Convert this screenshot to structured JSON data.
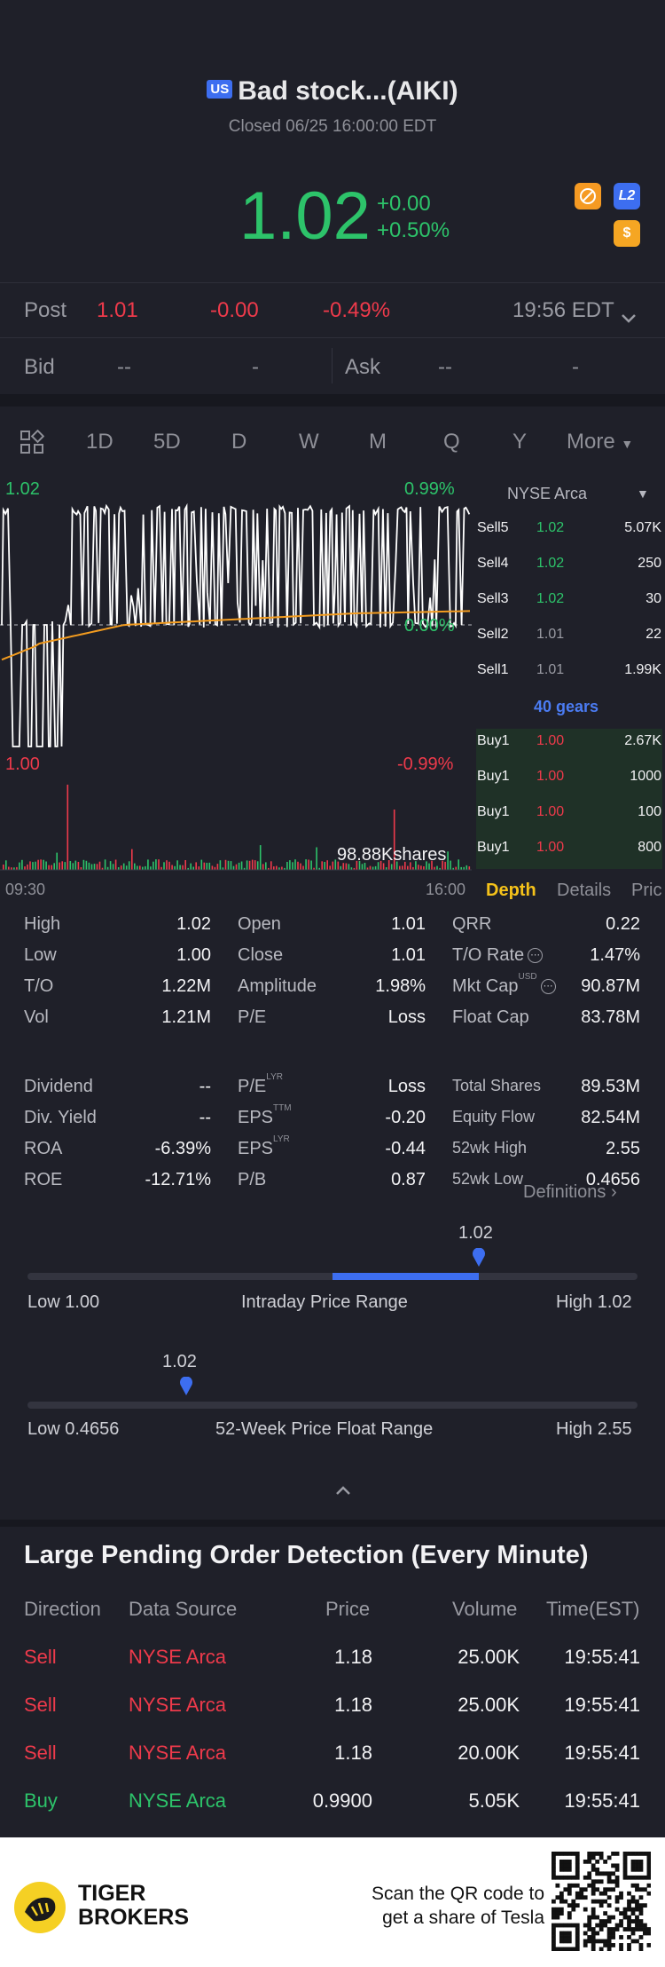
{
  "header": {
    "market_badge": "US",
    "title": "Bad stock...(AIKI)",
    "status": "Closed 06/25 16:00:00 EDT",
    "last_price": "1.02",
    "change_abs": "+0.00",
    "change_pct": "+0.50%",
    "badge_l2": "L2",
    "badge_dollar": "$"
  },
  "post": {
    "label": "Post",
    "price": "1.01",
    "change": "-0.00",
    "change_pct": "-0.49%",
    "time": "19:56 EDT"
  },
  "bidask": {
    "bid_label": "Bid",
    "bid_price": "--",
    "bid_size": "-",
    "ask_label": "Ask",
    "ask_price": "--",
    "ask_size": "-"
  },
  "tabs": [
    "1D",
    "5D",
    "D",
    "W",
    "M",
    "Q",
    "Y",
    "More"
  ],
  "active_tab": "1D",
  "chart": {
    "high_label": "1.02",
    "high_pct": "0.99%",
    "zero_pct": "0.00%",
    "low_label": "1.00",
    "low_pct": "-0.99%",
    "volume_label": "98.88Kshares",
    "time_start": "09:30",
    "time_end": "16:00"
  },
  "chart_data": {
    "type": "line",
    "title": "",
    "xlabel": "",
    "ylabel": "",
    "x_range": [
      "09:30",
      "16:00"
    ],
    "ylim": [
      1.0,
      1.02
    ],
    "prev_close": 1.01,
    "series": [],
    "volume_max_label": "98.88Kshares"
  },
  "order_book": {
    "exchange": "NYSE Arca",
    "sells": [
      {
        "label": "Sell5",
        "price": "1.02",
        "size": "5.07K"
      },
      {
        "label": "Sell4",
        "price": "1.02",
        "size": "250"
      },
      {
        "label": "Sell3",
        "price": "1.02",
        "size": "30"
      },
      {
        "label": "Sell2",
        "price": "1.01",
        "size": "22"
      },
      {
        "label": "Sell1",
        "price": "1.01",
        "size": "1.99K"
      }
    ],
    "gears": "40 gears",
    "buys": [
      {
        "label": "Buy1",
        "price": "1.00",
        "size": "2.67K"
      },
      {
        "label": "Buy1",
        "price": "1.00",
        "size": "1000"
      },
      {
        "label": "Buy1",
        "price": "1.00",
        "size": "100"
      },
      {
        "label": "Buy1",
        "price": "1.00",
        "size": "800"
      }
    ],
    "tab_depth": "Depth",
    "tab_details": "Details",
    "tab_price": "Pric"
  },
  "stats": {
    "col1": [
      {
        "label": "High",
        "value": "1.02"
      },
      {
        "label": "Low",
        "value": "1.00"
      },
      {
        "label": "T/O",
        "value": "1.22M"
      },
      {
        "label": "Vol",
        "value": "1.21M"
      },
      {
        "label": "Dividend",
        "value": "--"
      },
      {
        "label": "Div. Yield",
        "value": "--"
      },
      {
        "label": "ROA",
        "value": "-6.39%"
      },
      {
        "label": "ROE",
        "value": "-12.71%"
      }
    ],
    "col2": [
      {
        "label": "Open",
        "value": "1.01"
      },
      {
        "label": "Close",
        "value": "1.01"
      },
      {
        "label": "Amplitude",
        "value": "1.98%"
      },
      {
        "label": "P/E",
        "value": "Loss"
      },
      {
        "label": "P/E",
        "sup": "LYR",
        "value": "Loss"
      },
      {
        "label": "EPS",
        "sup": "TTM",
        "value": "-0.20"
      },
      {
        "label": "EPS",
        "sup": "LYR",
        "value": "-0.44"
      },
      {
        "label": "P/B",
        "value": "0.87"
      }
    ],
    "col3": [
      {
        "label": "QRR",
        "value": "0.22"
      },
      {
        "label": "T/O Rate",
        "value": "1.47%"
      },
      {
        "label": "Mkt Cap",
        "sup": "USD",
        "value": "90.87M"
      },
      {
        "label": "Float Cap",
        "value": "83.78M"
      },
      {
        "label": "Total Shares",
        "value": "89.53M"
      },
      {
        "label": "Equity Flow",
        "value": "82.54M"
      },
      {
        "label": "52wk High",
        "value": "2.55"
      },
      {
        "label": "52wk Low",
        "value": "0.4656"
      }
    ],
    "definitions": "Definitions"
  },
  "intraday_range": {
    "current": "1.02",
    "low": "Low 1.00",
    "title": "Intraday Price Range",
    "high": "High 1.02",
    "fill_start": 0.5,
    "marker": 0.74
  },
  "week52_range": {
    "current": "1.02",
    "low": "Low 0.4656",
    "title": "52-Week Price Float Range",
    "high": "High 2.55",
    "marker": 0.26
  },
  "pending": {
    "title": "Large Pending Order Detection (Every Minute)",
    "headers": [
      "Direction",
      "Data Source",
      "Price",
      "Volume",
      "Time(EST)"
    ],
    "rows": [
      {
        "direction": "Sell",
        "source": "NYSE Arca",
        "price": "1.18",
        "volume": "25.00K",
        "time": "19:55:41"
      },
      {
        "direction": "Sell",
        "source": "NYSE Arca",
        "price": "1.18",
        "volume": "25.00K",
        "time": "19:55:41"
      },
      {
        "direction": "Sell",
        "source": "NYSE Arca",
        "price": "1.18",
        "volume": "20.00K",
        "time": "19:55:41"
      },
      {
        "direction": "Buy",
        "source": "NYSE Arca",
        "price": "0.9900",
        "volume": "5.05K",
        "time": "19:55:41"
      }
    ]
  },
  "footer": {
    "brand_line1": "TIGER",
    "brand_line2": "BROKERS",
    "scan_line1": "Scan the QR code to",
    "scan_line2": "get a share of Tesla"
  },
  "colors": {
    "up": "#2dc36a",
    "down": "#ee3a4b",
    "accent": "#f5c21a",
    "blue": "#3d6ef0",
    "background": "#1f2029"
  }
}
